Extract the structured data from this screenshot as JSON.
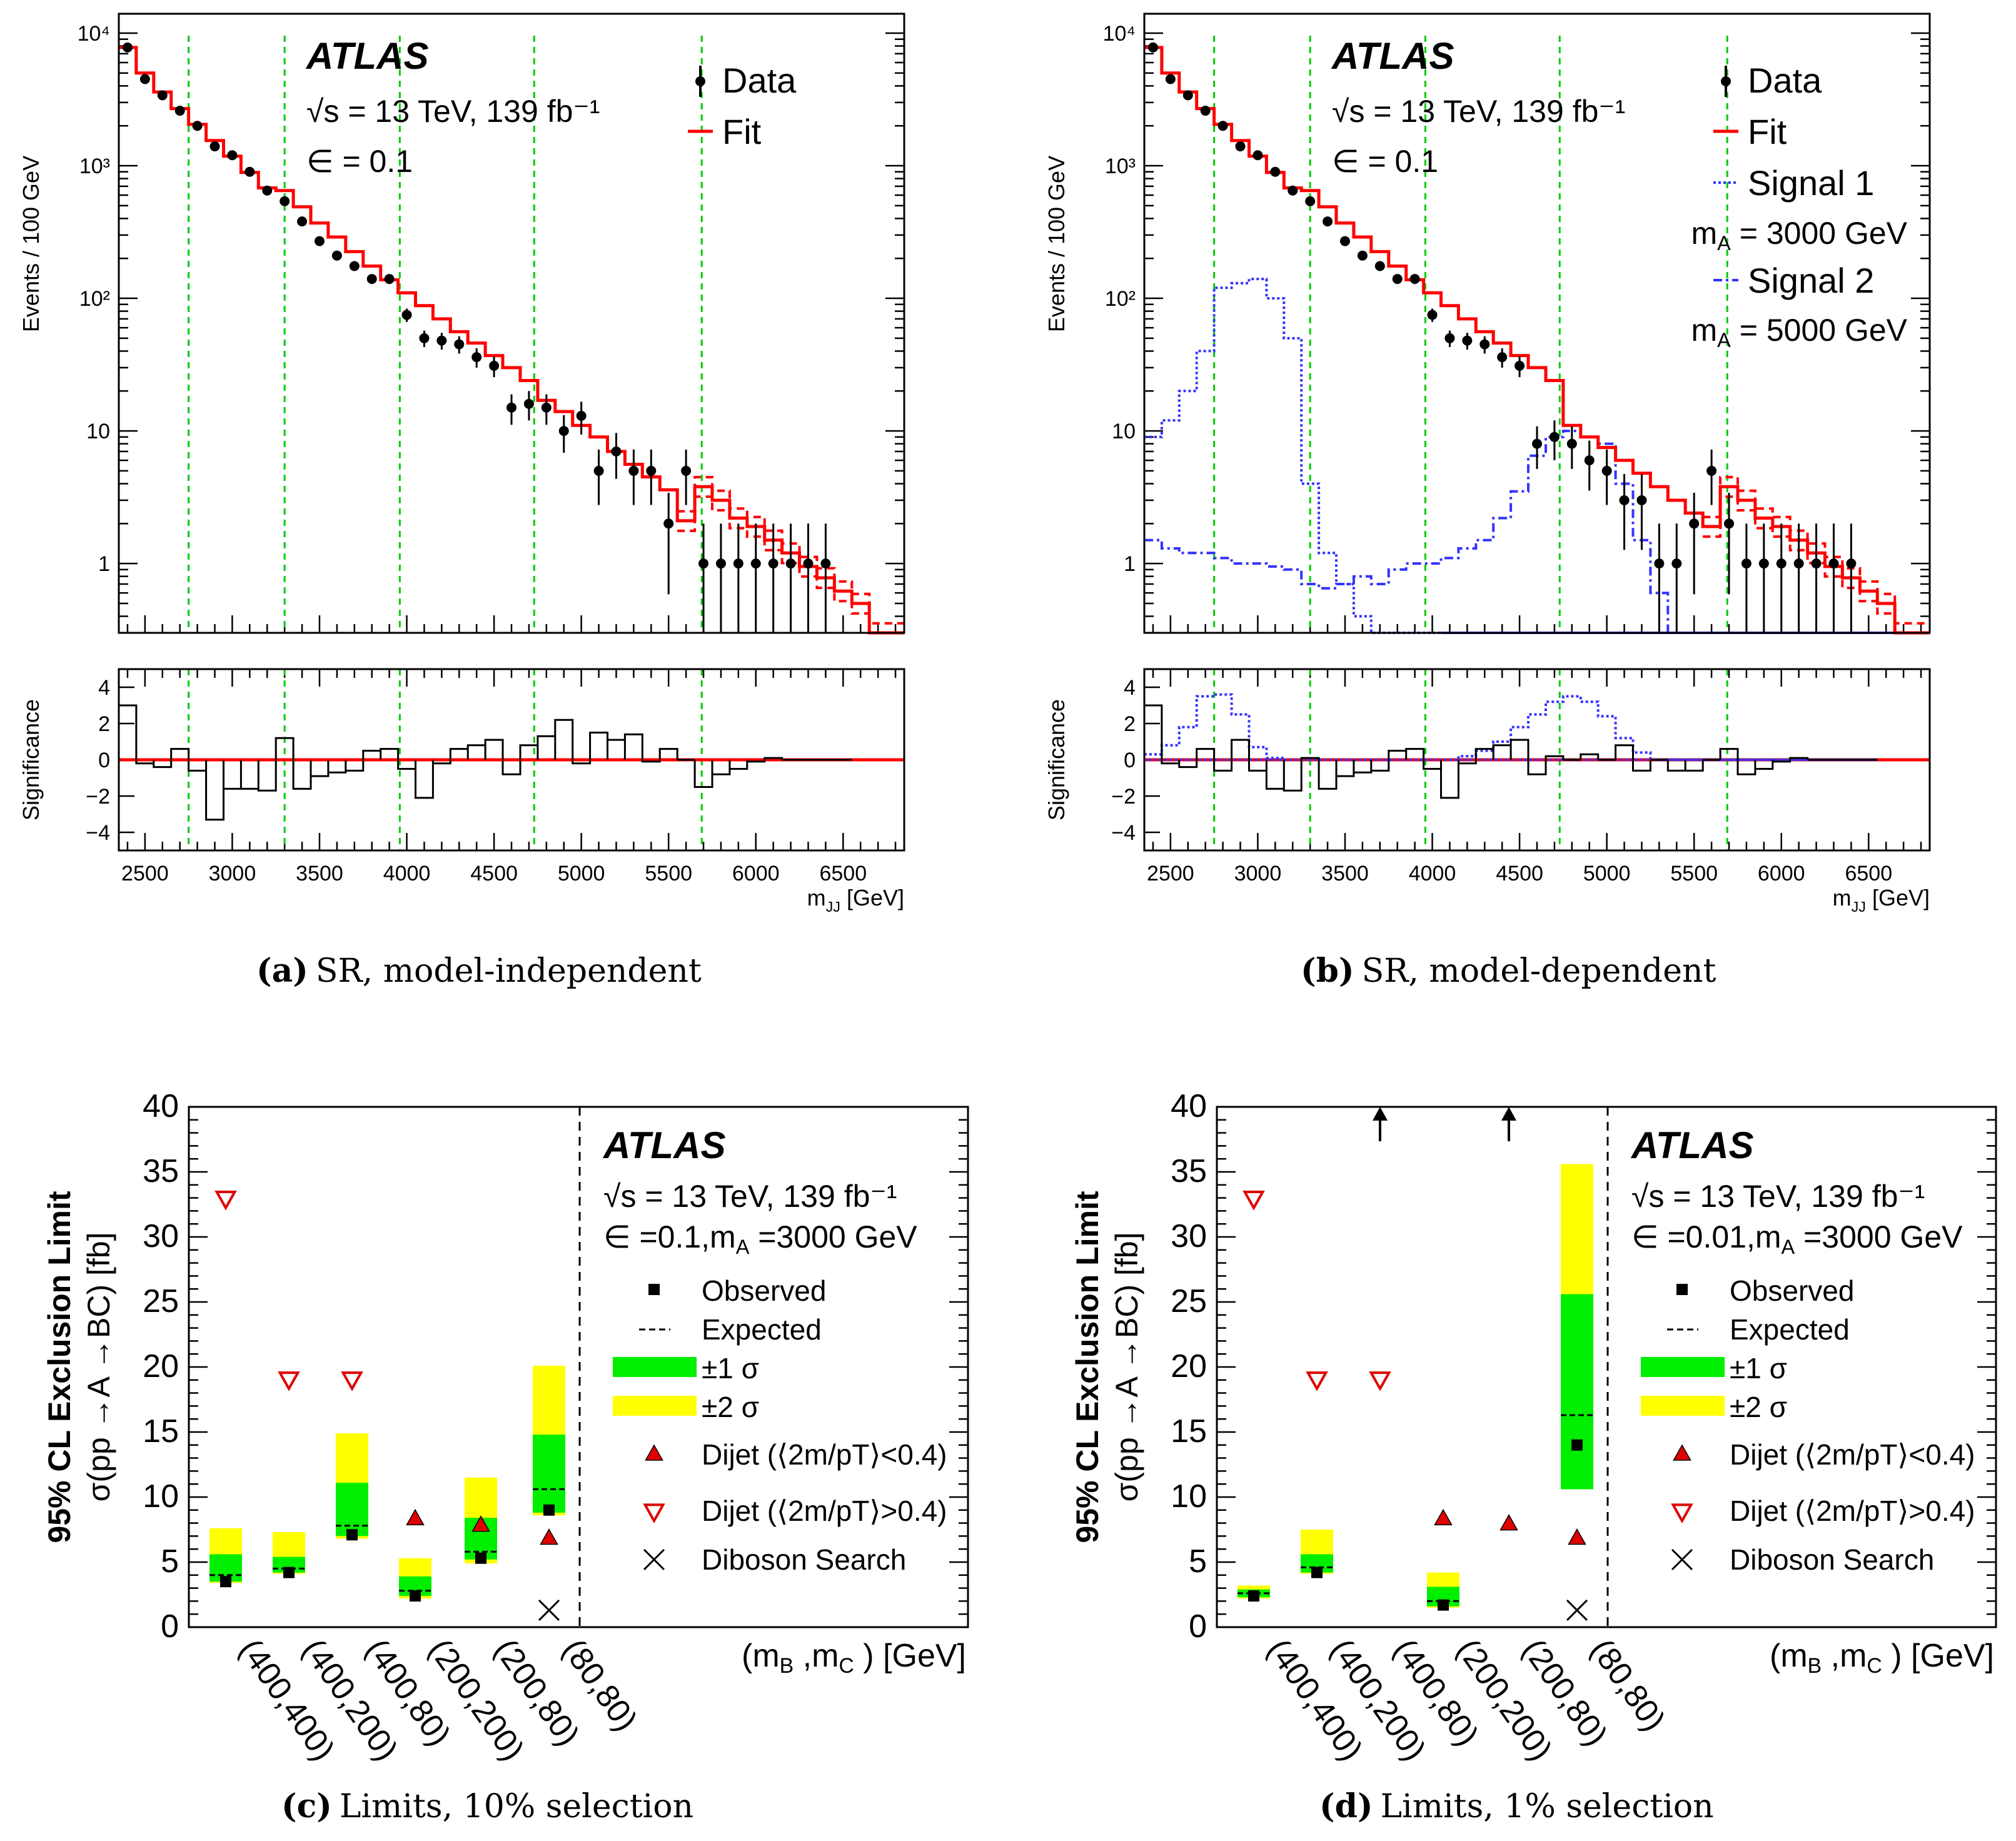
{
  "colors": {
    "fit": "#ff0000",
    "data": "#000000",
    "guide": "#00cc00",
    "signal": "#3333ff",
    "sig1band": "#00ee00",
    "sig2band": "#ffff00",
    "dijet": "#e00000"
  },
  "chart_data": [
    {
      "id": "a",
      "type": "histogram",
      "caption_label": "(a)",
      "caption_text": "SR, model-independent",
      "atlas": "ATLAS",
      "energy_text": "√s = 13 TeV, 139 fb⁻¹",
      "epsilon_text": "∈ = 0.1",
      "ylabel": "Events / 100 GeV",
      "xlabel": "m_JJ [GeV]",
      "xlabel_main": "m",
      "xlabel_sub": "JJ",
      "xlabel_unit": " [GeV]",
      "ratio_ylabel": "Significance",
      "xlim": [
        2350,
        6850
      ],
      "ylim": [
        0.3,
        14000
      ],
      "yscale": "log",
      "ratio_ylim": [
        -5,
        5
      ],
      "xticks": [
        "2500",
        "3000",
        "3500",
        "4000",
        "4500",
        "5000",
        "5500",
        "6000",
        "6500"
      ],
      "yticks": [
        "1",
        "10",
        "10²",
        "10³",
        "10⁴"
      ],
      "ratio_yticks": [
        "4",
        "2",
        "0",
        "−2",
        "−4"
      ],
      "guides": [
        2750,
        3300,
        3960,
        4730,
        5690
      ],
      "legend": [
        "Data",
        "Fit"
      ],
      "data_x": [
        2400,
        2500,
        2600,
        2700,
        2800,
        2900,
        3000,
        3100,
        3200,
        3300,
        3400,
        3500,
        3600,
        3700,
        3800,
        3900,
        4000,
        4100,
        4200,
        4300,
        4400,
        4500,
        4600,
        4700,
        4800,
        4900,
        5000,
        5100,
        5200,
        5300,
        5400,
        5500,
        5600,
        5700,
        5800,
        5900,
        6000,
        6100,
        6200,
        6300,
        6400
      ],
      "data_y": [
        7800,
        4500,
        3400,
        2600,
        2000,
        1400,
        1200,
        900,
        650,
        540,
        380,
        270,
        210,
        175,
        140,
        140,
        75,
        50,
        48,
        45,
        36,
        31,
        15,
        16,
        15,
        10,
        13,
        5,
        7,
        5,
        5,
        2,
        5,
        1,
        1,
        1,
        1,
        1,
        1,
        1,
        1
      ],
      "fit_edges": [
        2350,
        2450,
        2550,
        2650,
        2750,
        2850,
        2950,
        3050,
        3150,
        3250,
        3350,
        3450,
        3550,
        3650,
        3750,
        3850,
        3950,
        4050,
        4150,
        4250,
        4350,
        4450,
        4550,
        4650,
        4750,
        4850,
        4950,
        5050,
        5150,
        5250,
        5350,
        5450,
        5550,
        5650,
        5750,
        5850,
        5950,
        6050,
        6150,
        6250,
        6350,
        6450,
        6550,
        6650,
        6750,
        6850
      ],
      "fit_y": [
        7800,
        5000,
        3600,
        2700,
        2050,
        1550,
        1180,
        890,
        680,
        650,
        490,
        370,
        290,
        225,
        175,
        138,
        110,
        88,
        70,
        56,
        46,
        37,
        30,
        24,
        17,
        14,
        11,
        9,
        7,
        5.6,
        4.5,
        3.6,
        2.1,
        3.8,
        3.0,
        2.2,
        1.9,
        1.5,
        1.2,
        0.95,
        0.78,
        0.62,
        0.5,
        0.3,
        0.3
      ],
      "sig_edges": [
        2350,
        2450,
        2550,
        2650,
        2750,
        2850,
        2950,
        3050,
        3150,
        3250,
        3350,
        3450,
        3550,
        3650,
        3750,
        3850,
        3950,
        4050,
        4150,
        4250,
        4350,
        4450,
        4550,
        4650,
        4750,
        4850,
        4950,
        5050,
        5150,
        5250,
        5350,
        5450,
        5550,
        5650,
        5750,
        5850,
        5950,
        6050,
        6150,
        6250,
        6350,
        6450,
        6550
      ],
      "significance": [
        3.0,
        -0.2,
        -0.4,
        0.6,
        -0.6,
        -3.3,
        -1.6,
        -1.6,
        -1.7,
        1.2,
        -1.6,
        -0.9,
        -0.7,
        -0.6,
        0.5,
        0.6,
        -0.5,
        -2.1,
        -0.2,
        0.6,
        0.8,
        1.1,
        -0.8,
        0.8,
        1.3,
        2.2,
        -0.2,
        1.5,
        1.1,
        1.4,
        -0.1,
        0.6,
        0,
        -1.5,
        -0.8,
        -0.5,
        -0.1,
        0.1,
        0,
        0,
        0,
        0
      ]
    },
    {
      "id": "b",
      "type": "histogram",
      "caption_label": "(b)",
      "caption_text": "SR, model-dependent",
      "atlas": "ATLAS",
      "energy_text": "√s = 13 TeV, 139 fb⁻¹",
      "epsilon_text": "∈ = 0.1",
      "ylabel": "Events / 100 GeV",
      "xlabel": "m_JJ [GeV]",
      "xlabel_main": "m",
      "xlabel_sub": "JJ",
      "xlabel_unit": " [GeV]",
      "ratio_ylabel": "Significance",
      "xlim": [
        2350,
        6850
      ],
      "ylim": [
        0.3,
        14000
      ],
      "yscale": "log",
      "ratio_ylim": [
        -5,
        5
      ],
      "xticks": [
        "2500",
        "3000",
        "3500",
        "4000",
        "4500",
        "5000",
        "5500",
        "6000",
        "6500"
      ],
      "yticks": [
        "1",
        "10",
        "10²",
        "10³",
        "10⁴"
      ],
      "ratio_yticks": [
        "4",
        "2",
        "0",
        "−2",
        "−4"
      ],
      "guides": [
        2750,
        3300,
        3960,
        4730,
        5690
      ],
      "legend": [
        "Data",
        "Fit",
        "Signal 1",
        "m_A = 3000 GeV",
        "Signal 2",
        "m_A = 5000 GeV"
      ],
      "legend_sig1_mass": "m",
      "legend_sig1_sub": "A",
      "legend_sig1_val": " = 3000 GeV",
      "legend_sig2_val": " = 5000 GeV",
      "data_x": [
        2400,
        2500,
        2600,
        2700,
        2800,
        2900,
        3000,
        3100,
        3200,
        3300,
        3400,
        3500,
        3600,
        3700,
        3800,
        3900,
        4000,
        4100,
        4200,
        4300,
        4400,
        4500,
        4600,
        4700,
        4800,
        4900,
        5000,
        5100,
        5200,
        5300,
        5400,
        5500,
        5600,
        5700,
        5800,
        5900,
        6000,
        6100,
        6200,
        6300,
        6400
      ],
      "data_y": [
        7800,
        4500,
        3400,
        2600,
        2000,
        1400,
        1200,
        900,
        650,
        540,
        380,
        270,
        210,
        175,
        140,
        140,
        75,
        50,
        48,
        45,
        36,
        31,
        8,
        9,
        8,
        6,
        5,
        3,
        3,
        1,
        1,
        2,
        5,
        2,
        1,
        1,
        1,
        1,
        1,
        1,
        1
      ],
      "signal1_edges": [
        2350,
        2450,
        2550,
        2650,
        2750,
        2850,
        2950,
        3050,
        3150,
        3250,
        3350,
        3450,
        3550,
        3650,
        3750,
        3850,
        3950,
        4050
      ],
      "signal1_y": [
        9,
        12,
        20,
        40,
        120,
        130,
        140,
        100,
        50,
        4,
        1.2,
        0.7,
        0.4,
        0.3,
        0.3,
        0.3,
        0.3
      ],
      "signal2_edges": [
        2350,
        2450,
        2550,
        2650,
        2750,
        2850,
        2950,
        3050,
        3150,
        3250,
        3350,
        3450,
        3550,
        3650,
        3750,
        3850,
        3950,
        4050,
        4150,
        4250,
        4350,
        4450,
        4550,
        4650,
        4750,
        4850,
        4950,
        5050,
        5150,
        5250,
        5350,
        5450,
        5550,
        5650
      ],
      "signal2_y": [
        1.5,
        1.3,
        1.2,
        1.2,
        1.1,
        1.0,
        1.0,
        0.95,
        0.9,
        0.7,
        0.65,
        0.7,
        0.8,
        0.7,
        0.9,
        1.0,
        1.0,
        1.1,
        1.3,
        1.5,
        2.2,
        3.5,
        6.5,
        9,
        10,
        9,
        8,
        4,
        1.5,
        0.6,
        0.3,
        0.3,
        0.3
      ],
      "fit_edges": [
        2350,
        2450,
        2550,
        2650,
        2750,
        2850,
        2950,
        3050,
        3150,
        3250,
        3350,
        3450,
        3550,
        3650,
        3750,
        3850,
        3950,
        4050,
        4150,
        4250,
        4350,
        4450,
        4550,
        4650,
        4750,
        4850,
        4950,
        5050,
        5150,
        5250,
        5350,
        5450,
        5550,
        5650,
        5750,
        5850,
        5950,
        6050,
        6150,
        6250,
        6350,
        6450,
        6550,
        6650,
        6750,
        6850
      ],
      "fit_y": [
        7800,
        5000,
        3600,
        2700,
        2050,
        1550,
        1180,
        890,
        680,
        650,
        490,
        370,
        290,
        225,
        175,
        138,
        110,
        88,
        70,
        56,
        46,
        37,
        30,
        24,
        11,
        9,
        7.5,
        6,
        4.8,
        3.8,
        3.0,
        2.4,
        1.9,
        3.8,
        3.0,
        2.2,
        1.9,
        1.5,
        1.2,
        0.95,
        0.78,
        0.62,
        0.5,
        0.3,
        0.3
      ],
      "sig_edges": [
        2350,
        2450,
        2550,
        2650,
        2750,
        2850,
        2950,
        3050,
        3150,
        3250,
        3350,
        3450,
        3550,
        3650,
        3750,
        3850,
        3950,
        4050,
        4150,
        4250,
        4350,
        4450,
        4550,
        4650,
        4750,
        4850,
        4950,
        5050,
        5150,
        5250,
        5350,
        5450,
        5550,
        5650,
        5750,
        5850,
        5950,
        6050,
        6150,
        6250,
        6350,
        6450,
        6550
      ],
      "significance": [
        3.0,
        -0.2,
        -0.4,
        0.6,
        -0.6,
        1.1,
        -0.6,
        -1.6,
        -1.7,
        0.1,
        -1.6,
        -0.9,
        -0.7,
        -0.6,
        0.5,
        0.6,
        -0.5,
        -2.1,
        -0.2,
        0.6,
        0.8,
        1.1,
        -0.8,
        0.2,
        0,
        0.3,
        0,
        0.8,
        -0.6,
        0,
        -0.6,
        -0.6,
        0,
        0.6,
        -0.8,
        -0.5,
        -0.1,
        0.1,
        0,
        0,
        0,
        0
      ],
      "signal1_sig": [
        0.3,
        0.8,
        1.8,
        3.5,
        3.6,
        2.5,
        0.7,
        0.1,
        0,
        0,
        0,
        0,
        0,
        0,
        0,
        0,
        0,
        0,
        0,
        0,
        0,
        0,
        0,
        0,
        0,
        0,
        0,
        0,
        0,
        0,
        0,
        0,
        0,
        0,
        0,
        0,
        0,
        0,
        0,
        0,
        0,
        0
      ],
      "signal2_sig": [
        0,
        0,
        0,
        0,
        0,
        0,
        0,
        0,
        0,
        0,
        0,
        0,
        0,
        0,
        0,
        0,
        0,
        0,
        0.2,
        0.5,
        1.0,
        1.8,
        2.5,
        3.2,
        3.5,
        3.2,
        2.4,
        1.2,
        0.4,
        0,
        0,
        0,
        0,
        0,
        0,
        0,
        0,
        0,
        0,
        0,
        0,
        0
      ]
    },
    {
      "id": "c",
      "type": "limit",
      "caption_label": "(c)",
      "caption_text": "Limits, 10% selection",
      "atlas": "ATLAS",
      "energy_text": "√s = 13 TeV, 139 fb⁻¹",
      "epsilon_text": "∈ =0.1,m",
      "epsilon_sub": "A",
      "epsilon_tail": " =3000 GeV",
      "ylabel_line1": "95% CL Exclusion Limit",
      "ylabel_line2": "σ(pp →A →BC) [fb]",
      "xlabel": "(m_B ,m_C ) [GeV]",
      "ylim": [
        0,
        40
      ],
      "yticks": [
        "0",
        "5",
        "10",
        "15",
        "20",
        "25",
        "30",
        "35",
        "40"
      ],
      "categories": [
        "(400,400)",
        "(400,200)",
        "(400,80)",
        "(200,200)",
        "(200,80)",
        "(80,80)"
      ],
      "observed": [
        3.5,
        4.2,
        7.1,
        2.4,
        5.3,
        9.0
      ],
      "expected": [
        4.0,
        4.5,
        7.8,
        2.8,
        5.8,
        10.6
      ],
      "band1": [
        [
          3.5,
          5.6
        ],
        [
          4.2,
          5.4
        ],
        [
          7.0,
          11.1
        ],
        [
          2.4,
          3.9
        ],
        [
          5.2,
          8.4
        ],
        [
          8.8,
          14.8
        ]
      ],
      "band2": [
        [
          3.4,
          7.6
        ],
        [
          4.1,
          7.3
        ],
        [
          6.8,
          14.9
        ],
        [
          2.2,
          5.3
        ],
        [
          4.9,
          11.5
        ],
        [
          8.6,
          20.1
        ]
      ],
      "dijet_up": [
        null,
        null,
        null,
        8.3,
        7.8,
        6.8
      ],
      "dijet_down": [
        33.0,
        19.1,
        19.1,
        null,
        null,
        null
      ],
      "diboson": 1.3,
      "legend": [
        "Observed",
        "Expected",
        "±1 σ",
        "±2 σ",
        "Dijet (⟨2m/pT⟩<0.4)",
        "Dijet (⟨2m/pT⟩>0.4)",
        "Diboson Search"
      ]
    },
    {
      "id": "d",
      "type": "limit",
      "caption_label": "(d)",
      "caption_text": "Limits, 1% selection",
      "atlas": "ATLAS",
      "energy_text": "√s = 13 TeV, 139 fb⁻¹",
      "epsilon_text": "∈ =0.01,m",
      "epsilon_sub": "A",
      "epsilon_tail": " =3000 GeV",
      "ylabel_line1": "95% CL Exclusion Limit",
      "ylabel_line2": "σ(pp →A →BC) [fb]",
      "xlabel": "(m_B ,m_C ) [GeV]",
      "ylim": [
        0,
        40
      ],
      "yticks": [
        "0",
        "5",
        "10",
        "15",
        "20",
        "25",
        "30",
        "35",
        "40"
      ],
      "categories": [
        "(400,400)",
        "(400,200)",
        "(400,80)",
        "(200,200)",
        "(200,80)",
        "(80,80)"
      ],
      "observed": [
        2.4,
        4.2,
        null,
        1.7,
        null,
        14.0
      ],
      "expected": [
        2.6,
        4.6,
        null,
        2.0,
        null,
        16.3
      ],
      "band1": [
        [
          2.3,
          2.9
        ],
        [
          4.2,
          5.6
        ],
        null,
        [
          1.6,
          3.1
        ],
        null,
        [
          10.6,
          25.6
        ]
      ],
      "band2": [
        [
          2.2,
          3.2
        ],
        [
          4.1,
          7.5
        ],
        null,
        [
          1.5,
          4.2
        ],
        null,
        [
          10.6,
          35.6
        ]
      ],
      "off_scale_arrows": [
        2,
        4
      ],
      "dijet_up": [
        null,
        null,
        null,
        8.3,
        7.9,
        6.8
      ],
      "dijet_down": [
        33.0,
        19.1,
        19.1,
        null,
        null,
        null
      ],
      "diboson": 1.3,
      "legend": [
        "Observed",
        "Expected",
        "±1 σ",
        "±2 σ",
        "Dijet (⟨2m/pT⟩<0.4)",
        "Dijet (⟨2m/pT⟩>0.4)",
        "Diboson Search"
      ]
    }
  ]
}
